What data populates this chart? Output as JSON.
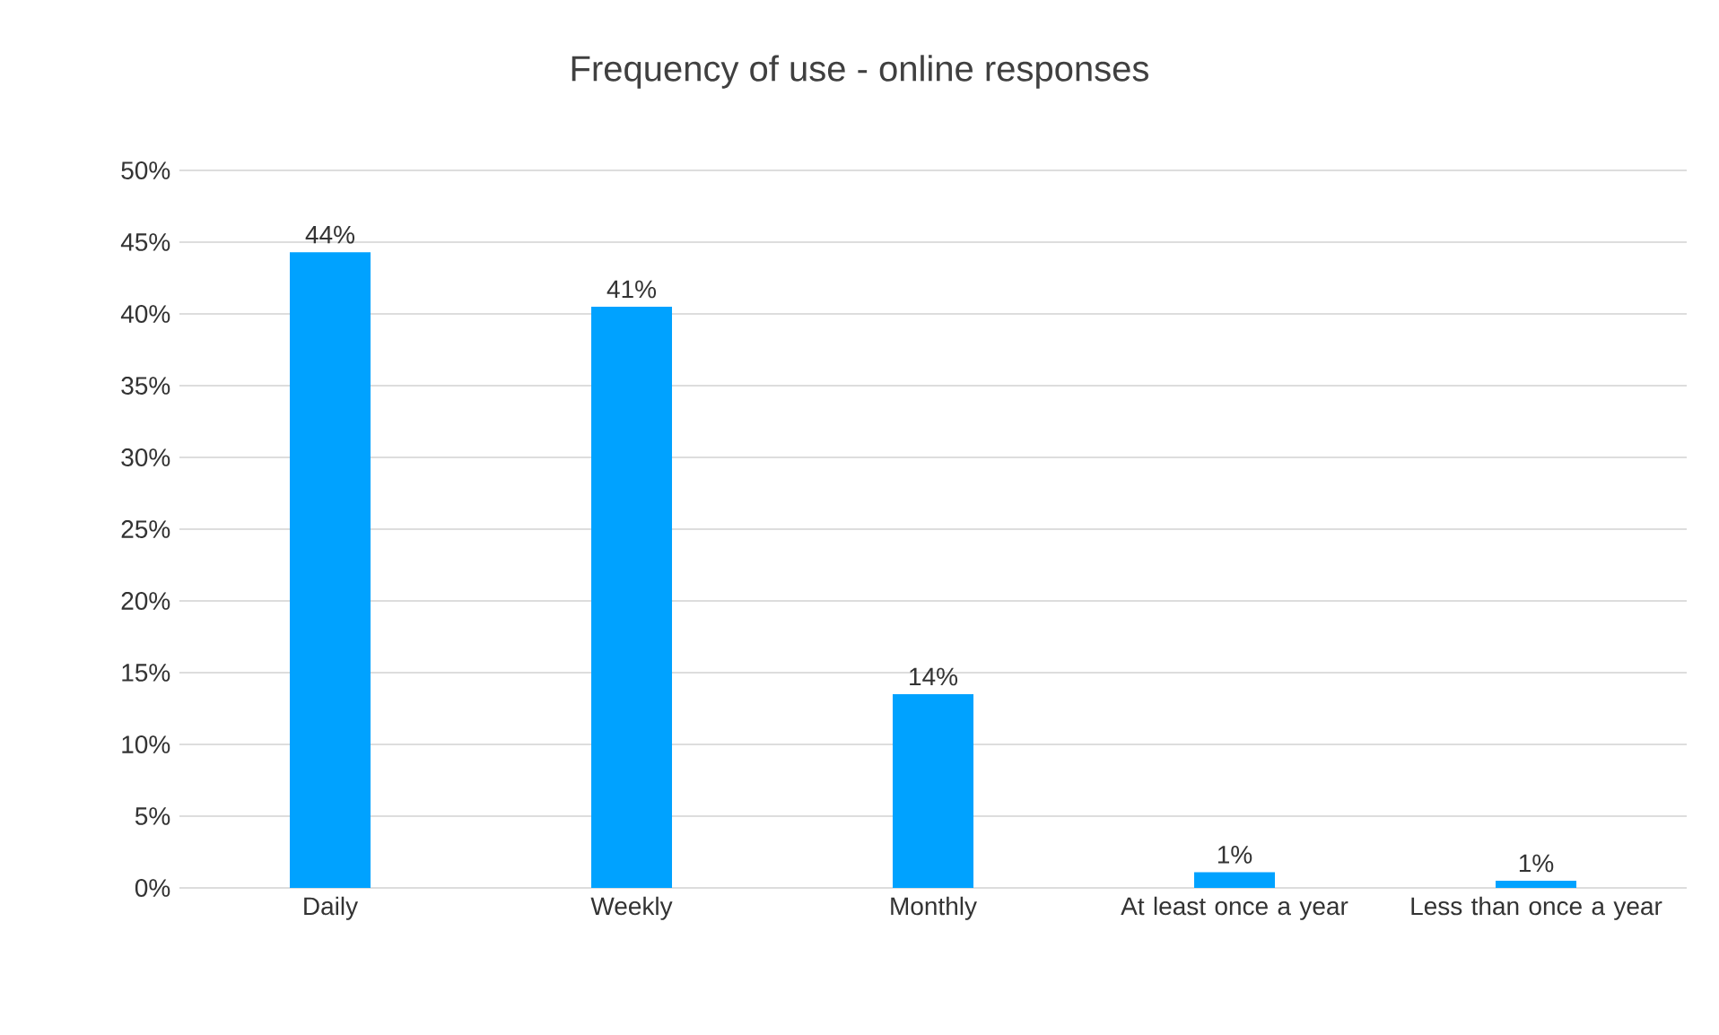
{
  "chart_data": {
    "type": "bar",
    "title": "Frequency of use - online responses",
    "categories": [
      "Daily",
      "Weekly",
      "Monthly",
      "At least once a year",
      "Less than once a year"
    ],
    "values": [
      44.3,
      40.5,
      13.5,
      1.1,
      0.5
    ],
    "value_labels": [
      "44%",
      "41%",
      "14%",
      "1%",
      "1%"
    ],
    "color": "#00a2ff",
    "ylim": [
      0,
      50
    ],
    "yticks": [
      {
        "value": 0,
        "label": "0%"
      },
      {
        "value": 5,
        "label": "5%"
      },
      {
        "value": 10,
        "label": "10%"
      },
      {
        "value": 15,
        "label": "15%"
      },
      {
        "value": 20,
        "label": "20%"
      },
      {
        "value": 25,
        "label": "25%"
      },
      {
        "value": 30,
        "label": "30%"
      },
      {
        "value": 35,
        "label": "35%"
      },
      {
        "value": 40,
        "label": "40%"
      },
      {
        "value": 45,
        "label": "45%"
      },
      {
        "value": 50,
        "label": "50%"
      }
    ],
    "grid": "y"
  }
}
